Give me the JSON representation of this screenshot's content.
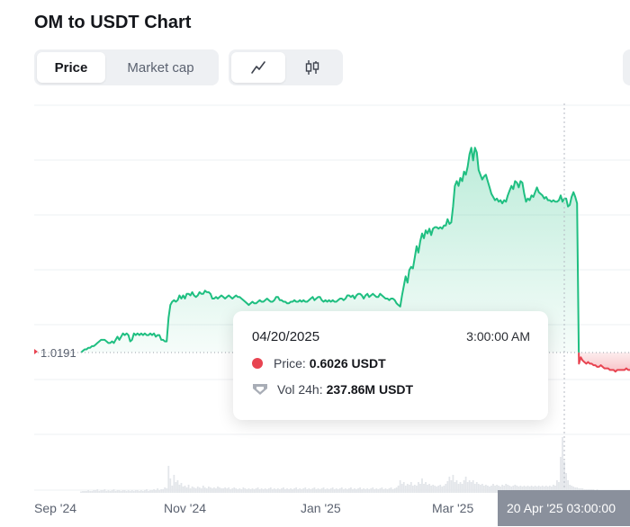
{
  "title": "OM to USDT Chart",
  "tabs": {
    "price": "Price",
    "market_cap": "Market cap"
  },
  "icons": {
    "line_chart": "line-chart-icon",
    "candlestick": "candlestick-icon"
  },
  "tooltip": {
    "date": "04/20/2025",
    "time": "3:00:00 AM",
    "price_label": "Price:",
    "price_value": "0.6026 USDT",
    "vol_label": "Vol 24h:",
    "vol_value": "237.86M USDT"
  },
  "crosshair_label": "20 Apr '25 03:00:00",
  "reference_label": "1.0191",
  "colors": {
    "up": "#1fbf81",
    "down": "#e84451",
    "badge": "#8a909c"
  },
  "chart_data": {
    "type": "area",
    "x_ticks": [
      "Sep '24",
      "Nov '24",
      "Jan '25",
      "Mar '25"
    ],
    "reference_value": 1.0191,
    "series": [
      {
        "values": [
          0.0,
          1.0,
          2.0,
          2.0,
          3.0,
          3.0,
          4.0,
          4.0,
          5.0,
          6.0,
          7.0,
          8.0,
          8.0,
          8.0,
          7.0,
          6.0,
          6.0,
          7.0,
          6.0,
          8.0,
          10.0,
          8.0,
          10.0,
          12.0,
          11.0,
          12.0,
          11.0,
          7.0,
          8.0,
          12.0,
          11.0,
          12.0,
          11.0,
          12.0,
          11.0,
          12.0,
          11.0,
          11.0,
          12.0,
          11.0,
          12.0,
          10.0,
          11.0,
          11.0,
          8.0,
          8.0,
          7.0,
          7.0,
          22.0,
          30.0,
          32.0,
          33.0,
          32.0,
          33.0,
          36.0,
          34.0,
          36.0,
          34.0,
          37.0,
          37.0,
          36.0,
          38.0,
          36.0,
          35.0,
          36.0,
          38.0,
          37.0,
          37.0,
          39.0,
          38.0,
          38.0,
          37.0,
          34.0,
          34.0,
          35.0,
          34.0,
          35.0,
          36.0,
          35.0,
          34.0,
          35.0,
          36.0,
          35.0,
          34.0,
          35.0,
          36.0,
          35.0,
          35.0,
          34.0,
          33.0,
          32.0,
          31.0,
          30.0,
          31.0,
          32.0,
          31.0,
          31.0,
          32.0,
          33.0,
          32.0,
          32.0,
          33.0,
          34.0,
          33.0,
          32.0,
          32.0,
          33.0,
          35.0,
          35.0,
          33.0,
          33.0,
          32.0,
          32.0,
          31.0,
          31.0,
          32.0,
          32.0,
          33.0,
          32.0,
          32.0,
          33.0,
          32.0,
          33.0,
          32.0,
          32.0,
          33.0,
          34.0,
          35.0,
          33.0,
          34.0,
          35.0,
          35.0,
          33.0,
          32.0,
          33.0,
          32.0,
          33.0,
          32.0,
          33.0,
          32.0,
          32.0,
          33.0,
          34.0,
          34.0,
          33.0,
          34.0,
          36.0,
          36.0,
          35.0,
          36.0,
          34.0,
          36.0,
          37.0,
          37.0,
          36.0,
          34.0,
          36.0,
          37.0,
          35.0,
          36.0,
          37.0,
          36.0,
          35.0,
          35.0,
          37.0,
          36.0,
          35.0,
          34.0,
          34.0,
          33.0,
          34.0,
          34.0,
          33.0,
          31.0,
          30.0,
          29.0,
          36.0,
          42.0,
          48.0,
          44.0,
          52.0,
          54.0,
          53.0,
          60.0,
          67.0,
          63.0,
          70.0,
          75.0,
          72.0,
          77.0,
          75.0,
          78.0,
          74.0,
          78.0,
          79.0,
          79.0,
          78.0,
          79.0,
          78.0,
          80.0,
          80.0,
          84.0,
          81.0,
          82.0,
          92.0,
          105.0,
          108.0,
          105.0,
          110.0,
          108.0,
          114.0,
          112.0,
          117.0,
          125.0,
          129.0,
          121.0,
          129.0,
          126.0,
          115.0,
          112.0,
          109.0,
          111.0,
          112.0,
          108.0,
          104.0,
          100.0,
          98.0,
          96.0,
          97.0,
          95.0,
          96.0,
          94.0,
          96.0,
          95.0,
          99.0,
          102.0,
          105.0,
          103.0,
          108.0,
          107.0,
          104.0,
          108.0,
          107.0,
          100.0,
          95.0,
          97.0,
          96.0,
          99.0,
          98.0,
          101.0,
          104.0,
          101.0,
          100.0,
          99.0,
          97.0,
          98.0,
          96.0,
          96.0,
          95.0,
          96.0,
          95.0,
          95.0,
          96.0,
          99.0,
          95.0,
          97.0,
          97.0,
          92.0,
          93.0,
          98.0,
          101.0,
          98.0,
          94.0,
          -7.0,
          -3.0,
          -5.0,
          -6.0,
          -7.0,
          -6.0,
          -7.0,
          -7.0,
          -8.0,
          -8.0,
          -9.0,
          -9.0,
          -8.0,
          -9.0,
          -10.0,
          -10.0,
          -10.0,
          -11.0,
          -11.0,
          -11.0,
          -12.0,
          -11.0,
          -11.0,
          -11.0,
          -11.0,
          -11.0,
          -10.0,
          -11.0,
          -11.0
        ]
      }
    ],
    "volume": [
      1.5,
      2.0,
      2.0,
      2.0,
      3.0,
      2.0,
      2.0,
      3.0,
      3.0,
      4.0,
      2.0,
      3.0,
      3.0,
      4.0,
      2.0,
      3.0,
      2.0,
      3.0,
      4.0,
      2.0,
      3.0,
      3.0,
      2.0,
      3.0,
      3.0,
      2.0,
      3.0,
      2.0,
      3.0,
      2.0,
      3.0,
      3.0,
      2.0,
      3.0,
      2.0,
      3.0,
      4.0,
      2.0,
      3.0,
      3.0,
      4.0,
      3.0,
      5.0,
      3.0,
      4.0,
      4.0,
      6.0,
      5.0,
      30.0,
      16.0,
      8.0,
      20.0,
      12.0,
      14.0,
      9.0,
      11.0,
      7.0,
      8.0,
      6.0,
      9.0,
      5.0,
      7.0,
      6.0,
      5.0,
      7.0,
      6.0,
      5.0,
      8.0,
      6.0,
      5.0,
      7.0,
      6.0,
      5.0,
      6.0,
      5.0,
      7.0,
      6.0,
      5.0,
      5.0,
      6.0,
      5.0,
      6.0,
      4.0,
      5.0,
      6.0,
      5.0,
      4.0,
      5.0,
      4.0,
      6.0,
      5.0,
      4.0,
      5.0,
      4.0,
      5.0,
      4.0,
      5.0,
      6.0,
      4.0,
      5.0,
      4.0,
      5.0,
      4.0,
      5.0,
      6.0,
      4.0,
      5.0,
      4.0,
      5.0,
      4.0,
      5.0,
      6.0,
      4.0,
      5.0,
      4.0,
      5.0,
      4.0,
      5.0,
      6.0,
      4.0,
      5.0,
      4.0,
      5.0,
      6.0,
      4.0,
      5.0,
      4.0,
      5.0,
      6.0,
      4.0,
      5.0,
      4.0,
      5.0,
      6.0,
      4.0,
      5.0,
      4.0,
      5.0,
      6.0,
      4.0,
      5.0,
      4.0,
      5.0,
      6.0,
      4.0,
      5.0,
      4.0,
      5.0,
      6.0,
      4.0,
      5.0,
      4.0,
      5.0,
      6.0,
      4.0,
      5.0,
      4.0,
      5.0,
      4.0,
      5.0,
      6.0,
      4.0,
      5.0,
      4.0,
      5.0,
      6.0,
      4.0,
      5.0,
      4.0,
      5.0,
      6.0,
      4.0,
      5.0,
      6.0,
      8.0,
      14.0,
      10.0,
      12.0,
      8.0,
      10.0,
      9.0,
      12.0,
      8.0,
      9.0,
      8.0,
      12.0,
      10.0,
      16.0,
      10.0,
      12.0,
      9.0,
      10.0,
      8.0,
      9.0,
      8.0,
      7.0,
      8.0,
      9.0,
      7.0,
      8.0,
      10.0,
      13.0,
      18.0,
      14.0,
      20.0,
      12.0,
      14.0,
      10.0,
      12.0,
      10.0,
      14.0,
      18.0,
      12.0,
      14.0,
      12.0,
      14.0,
      10.0,
      12.0,
      10.0,
      9.0,
      10.0,
      8.0,
      9.0,
      8.0,
      7.0,
      8.0,
      10.0,
      8.0,
      9.0,
      8.0,
      7.0,
      9.0,
      8.0,
      10.0,
      9.0,
      8.0,
      7.0,
      8.0,
      9.0,
      8.0,
      7.0,
      8.0,
      7.0,
      8.0,
      7.0,
      8.0,
      7.0,
      8.0,
      7.0,
      8.0,
      7.0,
      8.0,
      7.0,
      8.0,
      7.0,
      8.0,
      7.0,
      8.0,
      7.0,
      9.0,
      8.0,
      14.0,
      12.0,
      40.0,
      62.0,
      35.0,
      22.0,
      14.0,
      9.0,
      8.0,
      7.0,
      6.0,
      6.0,
      5.0,
      5.0,
      5.0,
      4.0,
      4.0,
      4.0,
      4.0,
      4.0,
      4.0,
      3.0,
      4.0,
      3.0,
      3.0,
      3.0,
      3.0,
      3.0,
      3.0,
      3.0,
      3.0
    ]
  }
}
